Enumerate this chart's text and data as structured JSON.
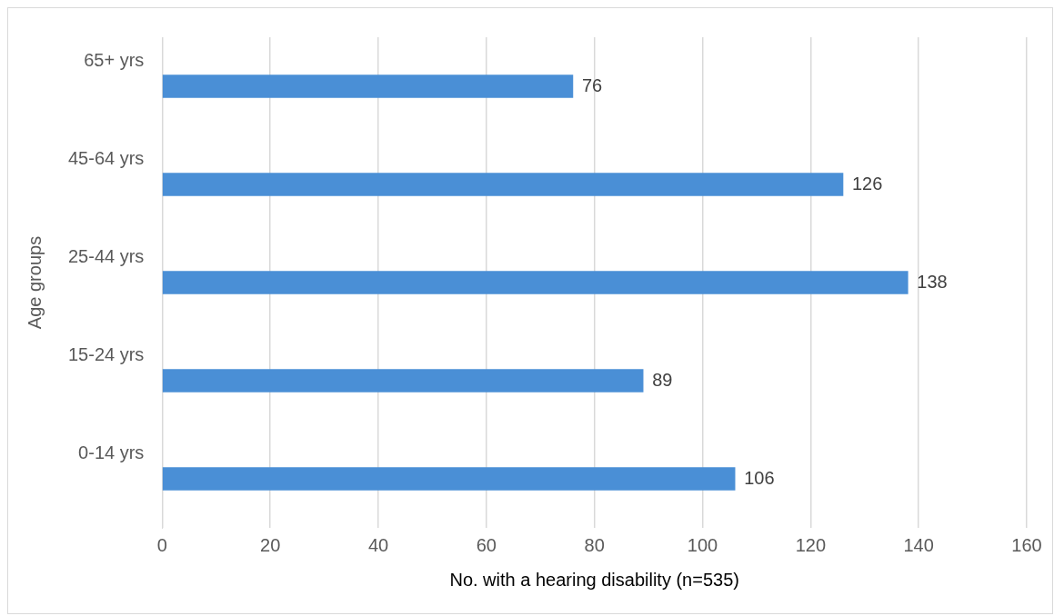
{
  "chart_data": {
    "type": "bar",
    "orientation": "horizontal",
    "xlabel": "No. with a hearing disability (n=535)",
    "ylabel": "Age groups",
    "categories": [
      "65+ yrs",
      "45-64 yrs",
      "25-44 yrs",
      "15-24 yrs",
      "0-14 yrs"
    ],
    "values": [
      76,
      126,
      138,
      89,
      106
    ],
    "color": "#4a8fd6",
    "xlim": [
      0,
      160
    ],
    "xticks": [
      0,
      20,
      40,
      60,
      80,
      100,
      120,
      140,
      160
    ],
    "grid": "x",
    "data_labels": true,
    "legend": false
  }
}
